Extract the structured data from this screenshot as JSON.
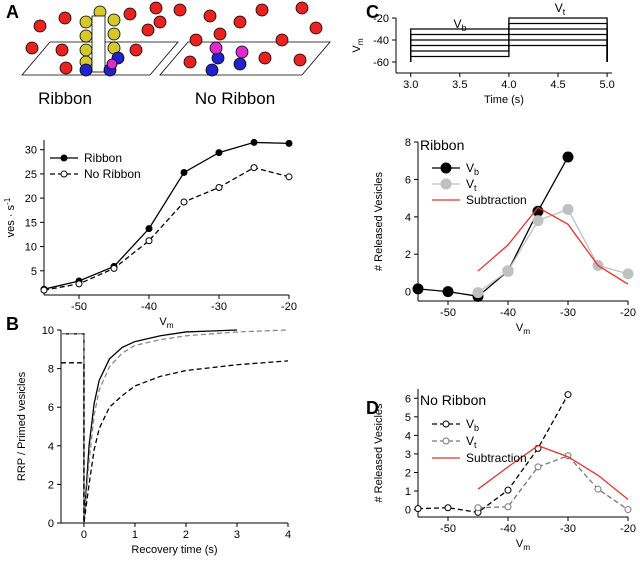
{
  "panel_labels": [
    "A",
    "B",
    "C",
    "D"
  ],
  "schematic": {
    "labels": [
      "Ribbon",
      "No Ribbon"
    ]
  },
  "chart_data": [
    {
      "type": "line",
      "xlabel": "Vm",
      "ylabel": "ves · s-1",
      "x": [
        -55,
        -50,
        -45,
        -40,
        -35,
        -30,
        -25,
        -20
      ],
      "series": [
        {
          "name": "Ribbon",
          "color": "#000000",
          "dash": false,
          "marker": "filled",
          "values": [
            1.2,
            2.9,
            5.9,
            13.7,
            25.3,
            29.4,
            31.5,
            31.3
          ]
        },
        {
          "name": "No Ribbon",
          "color": "#000000",
          "dash": true,
          "marker": "open",
          "values": [
            1.0,
            2.3,
            5.5,
            11.2,
            19.2,
            22.2,
            26.3,
            24.4
          ]
        }
      ],
      "xlim": [
        -55,
        -20
      ],
      "xticks": [
        -50,
        -40,
        -30,
        -20
      ],
      "ylim": [
        0,
        32
      ],
      "yticks": [
        5,
        10,
        15,
        20,
        25,
        30
      ],
      "legend": true
    },
    {
      "type": "line",
      "xlabel": "Recovery time (s)",
      "ylabel": "RRP / Primed vesicles",
      "series": [
        {
          "color": "#000000",
          "dash": false,
          "marker": "none",
          "x": [
            -0.45,
            0,
            0,
            0.1,
            0.2,
            0.3,
            0.5,
            0.75,
            1,
            1.5,
            2,
            2.5,
            3
          ],
          "values": [
            9.8,
            9.8,
            0,
            4.0,
            6.2,
            7.4,
            8.5,
            9.1,
            9.4,
            9.7,
            9.9,
            9.95,
            10
          ]
        },
        {
          "color": "#888888",
          "dash": true,
          "marker": "none",
          "x": [
            -0.45,
            0,
            0,
            0.1,
            0.2,
            0.3,
            0.5,
            0.75,
            1,
            1.5,
            2,
            3,
            4
          ],
          "values": [
            9.8,
            9.8,
            0,
            3.2,
            5.6,
            6.9,
            8.1,
            8.8,
            9.2,
            9.5,
            9.7,
            9.9,
            10
          ]
        },
        {
          "color": "#000000",
          "dash": true,
          "marker": "none",
          "x": [
            -0.45,
            0,
            0,
            0.1,
            0.2,
            0.3,
            0.5,
            0.75,
            1,
            1.5,
            2,
            3,
            4
          ],
          "values": [
            8.3,
            8.3,
            0,
            2.0,
            3.8,
            4.9,
            6.0,
            6.6,
            7.1,
            7.6,
            7.9,
            8.2,
            8.4
          ]
        }
      ],
      "xlim": [
        -0.45,
        4
      ],
      "xticks": [
        0,
        1,
        2,
        3,
        4
      ],
      "ylim": [
        0,
        10
      ],
      "yticks": [
        0,
        2,
        4,
        6,
        8,
        10
      ],
      "legend": false
    },
    {
      "type": "line",
      "xlabel": "Time (s)",
      "ylabel": "Vm",
      "annotations": [
        "Vb",
        "Vt"
      ],
      "x": [
        3.0,
        3.0,
        4.0,
        4.0,
        5.0,
        5.0
      ],
      "series": [
        {
          "color": "#000000",
          "dash": false,
          "marker": "none",
          "values": [
            -60,
            -55,
            -55,
            -45,
            -45,
            -60
          ]
        },
        {
          "color": "#000000",
          "dash": false,
          "marker": "none",
          "values": [
            -60,
            -50,
            -50,
            -40,
            -40,
            -60
          ]
        },
        {
          "color": "#000000",
          "dash": false,
          "marker": "none",
          "values": [
            -60,
            -45,
            -45,
            -35,
            -35,
            -60
          ]
        },
        {
          "color": "#000000",
          "dash": false,
          "marker": "none",
          "values": [
            -60,
            -40,
            -40,
            -30,
            -30,
            -60
          ]
        },
        {
          "color": "#000000",
          "dash": false,
          "marker": "none",
          "values": [
            -60,
            -35,
            -35,
            -25,
            -25,
            -60
          ]
        },
        {
          "color": "#000000",
          "dash": false,
          "marker": "none",
          "values": [
            -60,
            -30,
            -30,
            -20,
            -20,
            -60
          ]
        }
      ],
      "xlim": [
        2.85,
        5.05
      ],
      "xticks": [
        {
          "value": 3.0,
          "label": "3.0"
        },
        3.5,
        {
          "value": 4.0,
          "label": "4.0"
        },
        4.5,
        {
          "value": 5.0,
          "label": "5.0"
        }
      ],
      "ylim": [
        -70,
        -20
      ],
      "yticks": [
        -60,
        -40,
        -20
      ],
      "legend": false
    },
    {
      "type": "line",
      "xlabel": "Vm",
      "ylabel": "# Released Vesicles",
      "legend_title": "Ribbon",
      "series": [
        {
          "name": "Vb",
          "color": "#000000",
          "dash": false,
          "marker": "filled",
          "x": [
            -55,
            -50,
            -45,
            -40,
            -35,
            -30
          ],
          "values": [
            0.15,
            0.0,
            -0.25,
            1.1,
            4.3,
            7.2
          ]
        },
        {
          "name": "Vt",
          "color": "#c0c0c0",
          "dash": false,
          "marker": "filled",
          "x": [
            -45,
            -40,
            -35,
            -30,
            -25,
            -20
          ],
          "values": [
            -0.05,
            1.1,
            3.8,
            4.4,
            1.4,
            0.95
          ]
        },
        {
          "name": "Subtraction",
          "color": "#e8332a",
          "dash": false,
          "marker": "none",
          "x": [
            -45,
            -40,
            -35,
            -30,
            -25,
            -20
          ],
          "values": [
            1.1,
            2.5,
            4.5,
            3.6,
            1.4,
            0.4
          ]
        }
      ],
      "xlim": [
        -55,
        -20
      ],
      "xticks": [
        -50,
        -40,
        -30,
        -20
      ],
      "ylim": [
        -0.5,
        8
      ],
      "yticks": [
        0,
        2,
        4,
        6,
        8
      ],
      "legend": true
    },
    {
      "type": "line",
      "xlabel": "Vm",
      "ylabel": "# Released Vesicles",
      "legend_title": "No Ribbon",
      "series": [
        {
          "name": "Vb",
          "color": "#000000",
          "dash": true,
          "marker": "open",
          "x": [
            -55,
            -50,
            -45,
            -40,
            -35,
            -30
          ],
          "values": [
            0.05,
            0.1,
            -0.15,
            1.05,
            3.3,
            6.2
          ]
        },
        {
          "name": "Vt",
          "color": "#777777",
          "dash": true,
          "marker": "open",
          "x": [
            -45,
            -40,
            -35,
            -30,
            -25,
            -20
          ],
          "values": [
            0.1,
            0.15,
            2.3,
            2.9,
            1.1,
            0.0
          ]
        },
        {
          "name": "Subtraction",
          "color": "#e8332a",
          "dash": false,
          "marker": "none",
          "x": [
            -45,
            -40,
            -35,
            -30,
            -25,
            -20
          ],
          "values": [
            1.1,
            2.3,
            3.45,
            2.85,
            1.85,
            0.55
          ]
        }
      ],
      "xlim": [
        -55,
        -20
      ],
      "xticks": [
        -50,
        -40,
        -30,
        -20
      ],
      "ylim": [
        -0.4,
        6.5
      ],
      "yticks": [
        0,
        1,
        2,
        3,
        4,
        5,
        6
      ],
      "legend": true
    }
  ]
}
